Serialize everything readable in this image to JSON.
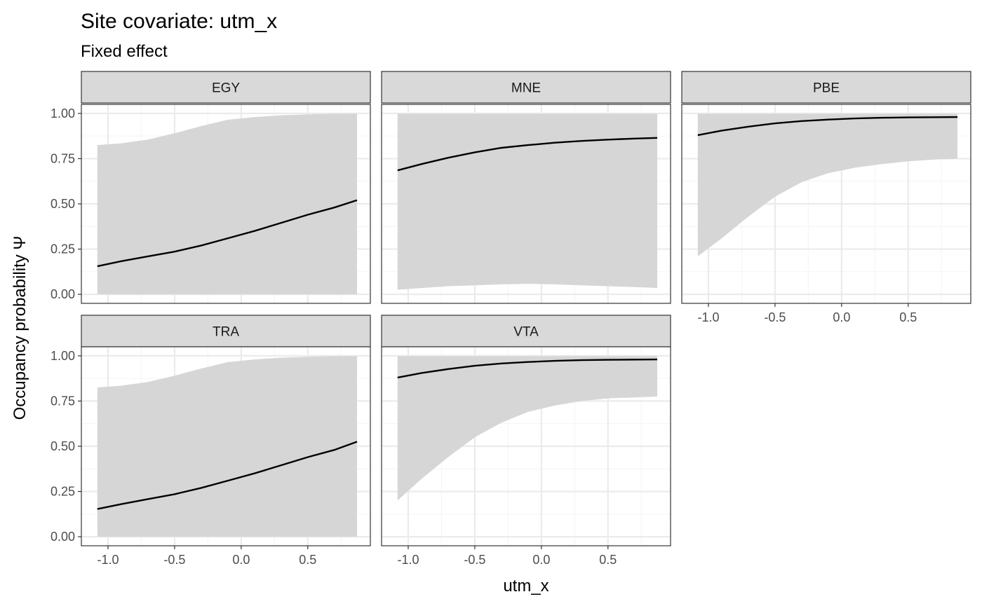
{
  "chart_data": {
    "type": "line",
    "title": "Site covariate: utm_x",
    "subtitle": "Fixed effect",
    "xlabel": "utm_x",
    "ylabel": "Occupancy probability  Ψ",
    "xlim": [
      -1.2,
      0.97
    ],
    "ylim": [
      -0.05,
      1.05
    ],
    "x_ticks": [
      -1.0,
      -0.5,
      0.0,
      0.5
    ],
    "x_tick_labels": [
      "-1.0",
      "-0.5",
      "0.0",
      "0.5"
    ],
    "y_ticks": [
      0.0,
      0.25,
      0.5,
      0.75,
      1.0
    ],
    "y_tick_labels": [
      "0.00",
      "0.25",
      "0.50",
      "0.75",
      "1.00"
    ],
    "grid": true,
    "band_color": "#d6d6d6",
    "line_color": "#000000",
    "x": [
      -1.08,
      -0.9,
      -0.7,
      -0.5,
      -0.3,
      -0.1,
      0.1,
      0.3,
      0.5,
      0.7,
      0.87
    ],
    "panels": [
      {
        "name": "EGY",
        "mean": [
          0.155,
          0.183,
          0.21,
          0.236,
          0.27,
          0.31,
          0.35,
          0.395,
          0.44,
          0.48,
          0.52
        ],
        "lower": [
          0.0,
          0.0,
          0.0,
          0.0,
          0.0,
          0.0,
          0.0,
          0.0,
          0.0,
          0.0,
          0.0
        ],
        "upper": [
          0.825,
          0.835,
          0.855,
          0.89,
          0.93,
          0.965,
          0.98,
          0.99,
          0.995,
          0.998,
          0.999
        ]
      },
      {
        "name": "MNE",
        "mean": [
          0.685,
          0.72,
          0.755,
          0.785,
          0.81,
          0.825,
          0.838,
          0.848,
          0.855,
          0.861,
          0.865
        ],
        "lower": [
          0.025,
          0.035,
          0.045,
          0.05,
          0.055,
          0.058,
          0.055,
          0.05,
          0.045,
          0.04,
          0.035
        ],
        "upper": [
          0.998,
          0.998,
          0.998,
          0.998,
          0.998,
          0.998,
          0.998,
          0.998,
          0.998,
          0.998,
          0.998
        ]
      },
      {
        "name": "PBE",
        "mean": [
          0.88,
          0.905,
          0.927,
          0.945,
          0.958,
          0.966,
          0.972,
          0.976,
          0.978,
          0.979,
          0.98
        ],
        "lower": [
          0.21,
          0.31,
          0.43,
          0.54,
          0.62,
          0.67,
          0.7,
          0.72,
          0.735,
          0.745,
          0.75
        ],
        "upper": [
          0.998,
          0.998,
          0.998,
          0.998,
          0.998,
          0.998,
          0.998,
          0.998,
          0.998,
          0.998,
          0.998
        ]
      },
      {
        "name": "TRA",
        "mean": [
          0.153,
          0.18,
          0.208,
          0.235,
          0.27,
          0.31,
          0.35,
          0.395,
          0.44,
          0.48,
          0.525
        ],
        "lower": [
          0.0,
          0.0,
          0.0,
          0.0,
          0.0,
          0.0,
          0.0,
          0.0,
          0.0,
          0.0,
          0.0
        ],
        "upper": [
          0.825,
          0.835,
          0.855,
          0.89,
          0.93,
          0.965,
          0.98,
          0.99,
          0.995,
          0.998,
          0.999
        ]
      },
      {
        "name": "VTA",
        "mean": [
          0.88,
          0.905,
          0.927,
          0.945,
          0.958,
          0.966,
          0.972,
          0.976,
          0.978,
          0.979,
          0.98
        ],
        "lower": [
          0.2,
          0.32,
          0.44,
          0.55,
          0.63,
          0.69,
          0.725,
          0.75,
          0.765,
          0.77,
          0.775
        ],
        "upper": [
          0.998,
          0.998,
          0.998,
          0.998,
          0.998,
          0.998,
          0.998,
          0.998,
          0.998,
          0.998,
          0.998
        ]
      }
    ]
  }
}
